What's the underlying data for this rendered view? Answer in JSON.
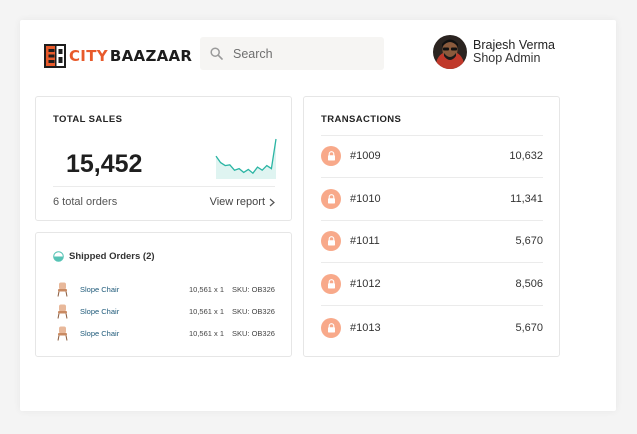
{
  "colors": {
    "brand_orange": "#e85a2b",
    "sparkline_teal": "#2bb5a4",
    "lock_badge": "#f8a98a"
  },
  "header": {
    "logo": {
      "word1": "CITY",
      "word2": "BAAZAAR"
    },
    "search": {
      "placeholder": "Search",
      "icon": "search-icon"
    },
    "user": {
      "name": "Brajesh Verma",
      "role": "Shop Admin"
    }
  },
  "sales": {
    "title": "TOTAL SALES",
    "total": "15,452",
    "orders_text": "6 total orders",
    "view_report": "View report",
    "trend": [
      0.55,
      0.38,
      0.3,
      0.32,
      0.18,
      0.22,
      0.12,
      0.2,
      0.1,
      0.26,
      0.18,
      0.3,
      0.22,
      1.0
    ]
  },
  "shipped": {
    "title": "Shipped Orders (2)",
    "items": [
      {
        "name": "Slope Chair",
        "qty": "10,561 x 1",
        "sku": "SKU: OB326"
      },
      {
        "name": "Slope Chair",
        "qty": "10,561 x 1",
        "sku": "SKU: OB326"
      },
      {
        "name": "Slope Chair",
        "qty": "10,561 x 1",
        "sku": "SKU: OB326"
      }
    ]
  },
  "transactions": {
    "title": "TRANSACTIONS",
    "items": [
      {
        "id": "#1009",
        "amount": "10,632"
      },
      {
        "id": "#1010",
        "amount": "11,341"
      },
      {
        "id": "#1011",
        "amount": "5,670"
      },
      {
        "id": "#1012",
        "amount": "8,506"
      },
      {
        "id": "#1013",
        "amount": "5,670"
      }
    ]
  }
}
